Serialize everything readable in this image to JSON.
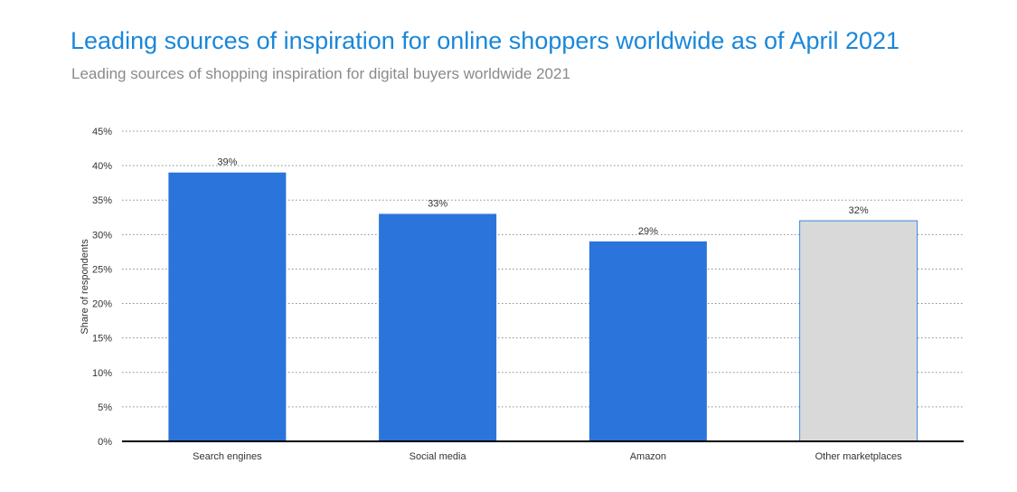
{
  "header": {
    "title": "Leading sources of inspiration for online shoppers worldwide as of April 2021",
    "subtitle": "Leading sources of shopping inspiration for digital buyers worldwide 2021"
  },
  "chart_data": {
    "type": "bar",
    "categories": [
      "Search engines",
      "Social media",
      "Amazon",
      "Other marketplaces"
    ],
    "values": [
      39,
      33,
      29,
      32
    ],
    "value_labels": [
      "39%",
      "33%",
      "29%",
      "32%"
    ],
    "ylabel": "Share of respondents",
    "xlabel": "",
    "ylim": [
      0,
      45
    ],
    "yticks": [
      0,
      5,
      10,
      15,
      20,
      25,
      30,
      35,
      40,
      45
    ],
    "ytick_labels": [
      "0%",
      "5%",
      "10%",
      "15%",
      "20%",
      "25%",
      "30%",
      "35%",
      "40%",
      "45%"
    ],
    "grid": true,
    "colors": {
      "bar": "#2a74dc",
      "highlight_bar": "#d9d9d9",
      "highlight_border": "#3d86e0",
      "grid": "#8c8c8c",
      "axis": "#000000",
      "text": "#333333"
    },
    "highlight_index": 3
  }
}
